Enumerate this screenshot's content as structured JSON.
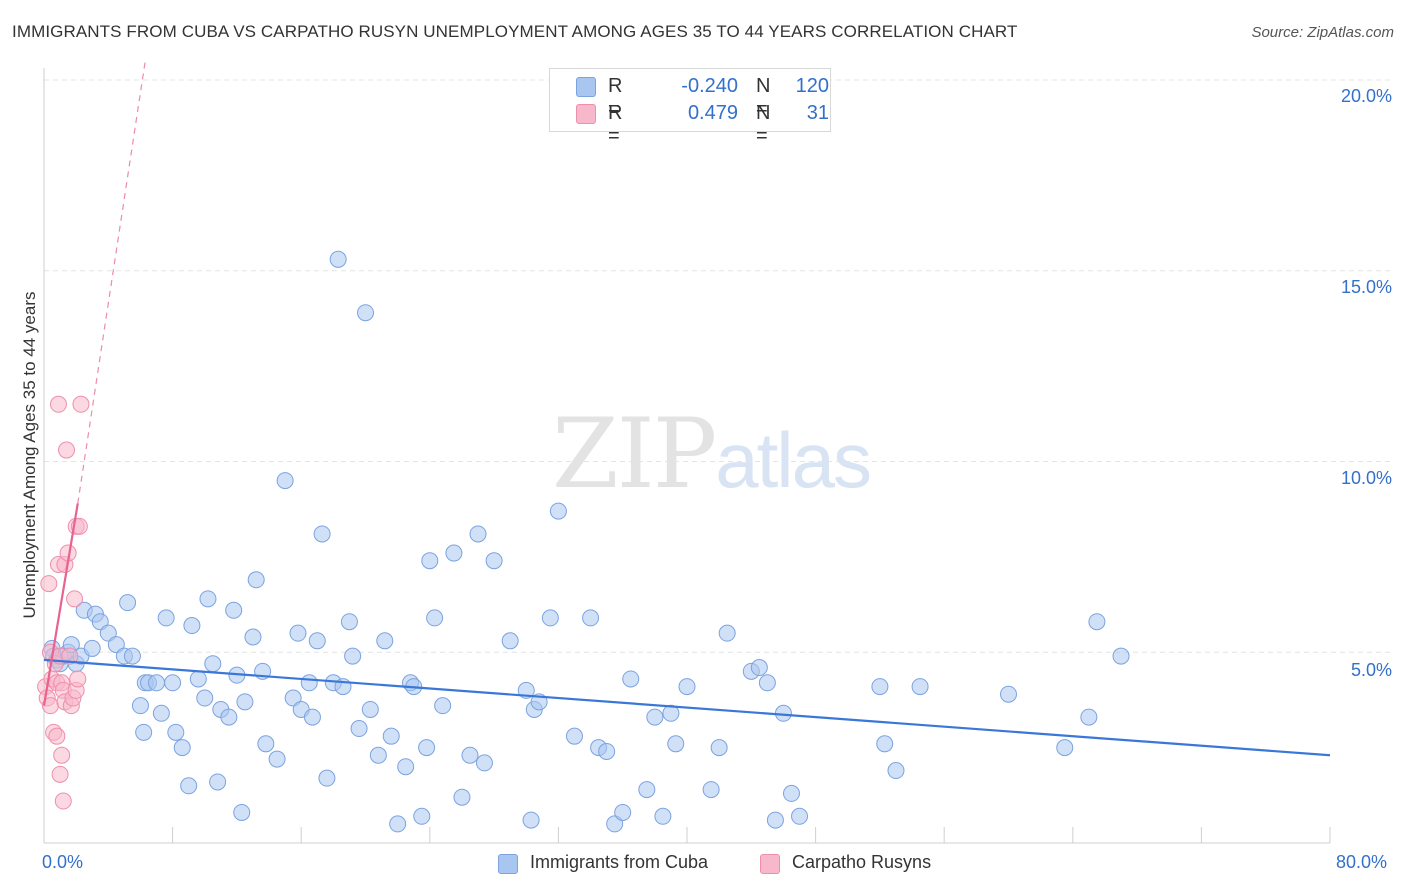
{
  "title": "IMMIGRANTS FROM CUBA VS CARPATHO RUSYN UNEMPLOYMENT AMONG AGES 35 TO 44 YEARS CORRELATION CHART",
  "source": "Source: ZipAtlas.com",
  "watermark": {
    "zip": "ZIP",
    "atlas": "atlas"
  },
  "legend": {
    "rows": [
      {
        "r_label": "R =",
        "r_value": "-0.240",
        "n_label": "N =",
        "n_value": "120",
        "color": "#a9c6f0",
        "border": "#7ba3e0"
      },
      {
        "r_label": "R =",
        "r_value": "0.479",
        "n_label": "N =",
        "n_value": "31",
        "color": "#f7b8cb",
        "border": "#ee8fac"
      }
    ]
  },
  "colors": {
    "blue": "#3a77d8",
    "pink": "#e8638f",
    "blue_fill": "#a9c6f0",
    "pink_fill": "#f7b8cb",
    "grid": "#e4e4e4",
    "tick_text": "#3370cc"
  },
  "chart_data": {
    "type": "scatter",
    "title": "IMMIGRANTS FROM CUBA VS CARPATHO RUSYN UNEMPLOYMENT AMONG AGES 35 TO 44 YEARS CORRELATION CHART",
    "xlabel": "",
    "ylabel": "Unemployment Among Ages 35 to 44 years",
    "xlim": [
      0,
      80
    ],
    "ylim": [
      0,
      20
    ],
    "x_tick_labels": [
      "0.0%",
      "80.0%"
    ],
    "y_ticks": [
      5,
      10,
      15,
      20
    ],
    "y_tick_labels": [
      "5.0%",
      "10.0%",
      "15.0%",
      "20.0%"
    ],
    "grid": true,
    "legend_position": "top-center",
    "series": [
      {
        "name": "Immigrants from Cuba",
        "color": "#3a77d8",
        "trend": {
          "x": [
            0,
            80
          ],
          "y": [
            4.8,
            2.3
          ]
        },
        "points": [
          [
            0.5,
            5.1
          ],
          [
            0.6,
            4.9
          ],
          [
            0.8,
            4.8
          ],
          [
            1.0,
            4.7
          ],
          [
            1.2,
            4.9
          ],
          [
            1.5,
            5.0
          ],
          [
            1.7,
            5.2
          ],
          [
            2.0,
            4.7
          ],
          [
            2.3,
            4.9
          ],
          [
            2.5,
            6.1
          ],
          [
            3.0,
            5.1
          ],
          [
            3.2,
            6.0
          ],
          [
            3.5,
            5.8
          ],
          [
            4.0,
            5.5
          ],
          [
            4.5,
            5.2
          ],
          [
            5.0,
            4.9
          ],
          [
            5.2,
            6.3
          ],
          [
            5.5,
            4.9
          ],
          [
            6.0,
            3.6
          ],
          [
            6.2,
            2.9
          ],
          [
            6.3,
            4.2
          ],
          [
            6.5,
            4.2
          ],
          [
            7.0,
            4.2
          ],
          [
            7.3,
            3.4
          ],
          [
            7.6,
            5.9
          ],
          [
            8.0,
            4.2
          ],
          [
            8.2,
            2.9
          ],
          [
            8.6,
            2.5
          ],
          [
            9.0,
            1.5
          ],
          [
            9.2,
            5.7
          ],
          [
            9.6,
            4.3
          ],
          [
            10.0,
            3.8
          ],
          [
            10.2,
            6.4
          ],
          [
            10.5,
            4.7
          ],
          [
            10.8,
            1.6
          ],
          [
            11.0,
            3.5
          ],
          [
            11.5,
            3.3
          ],
          [
            11.8,
            6.1
          ],
          [
            12.0,
            4.4
          ],
          [
            12.3,
            0.8
          ],
          [
            12.5,
            3.7
          ],
          [
            13.0,
            5.4
          ],
          [
            13.2,
            6.9
          ],
          [
            13.6,
            4.5
          ],
          [
            13.8,
            2.6
          ],
          [
            14.5,
            2.2
          ],
          [
            15.0,
            9.5
          ],
          [
            15.5,
            3.8
          ],
          [
            15.8,
            5.5
          ],
          [
            16.0,
            3.5
          ],
          [
            16.5,
            4.2
          ],
          [
            16.7,
            3.3
          ],
          [
            17.0,
            5.3
          ],
          [
            17.3,
            8.1
          ],
          [
            17.6,
            1.7
          ],
          [
            18.0,
            4.2
          ],
          [
            18.3,
            15.3
          ],
          [
            18.6,
            4.1
          ],
          [
            19.0,
            5.8
          ],
          [
            19.2,
            4.9
          ],
          [
            19.6,
            3.0
          ],
          [
            20.0,
            13.9
          ],
          [
            20.3,
            3.5
          ],
          [
            20.8,
            2.3
          ],
          [
            21.2,
            5.3
          ],
          [
            21.6,
            2.8
          ],
          [
            22.0,
            0.5
          ],
          [
            22.5,
            2.0
          ],
          [
            22.8,
            4.2
          ],
          [
            23.0,
            4.1
          ],
          [
            23.5,
            0.7
          ],
          [
            23.8,
            2.5
          ],
          [
            24.0,
            7.4
          ],
          [
            24.3,
            5.9
          ],
          [
            24.8,
            3.6
          ],
          [
            25.5,
            7.6
          ],
          [
            26.0,
            1.2
          ],
          [
            26.5,
            2.3
          ],
          [
            27.0,
            8.1
          ],
          [
            27.4,
            2.1
          ],
          [
            28.0,
            7.4
          ],
          [
            29.0,
            5.3
          ],
          [
            30.0,
            4.0
          ],
          [
            30.3,
            0.6
          ],
          [
            30.5,
            3.5
          ],
          [
            30.8,
            3.7
          ],
          [
            31.5,
            5.9
          ],
          [
            32.0,
            8.7
          ],
          [
            33.0,
            2.8
          ],
          [
            34.0,
            5.9
          ],
          [
            34.5,
            2.5
          ],
          [
            35.0,
            2.4
          ],
          [
            35.5,
            0.5
          ],
          [
            36.0,
            0.8
          ],
          [
            36.5,
            4.3
          ],
          [
            37.5,
            1.4
          ],
          [
            38.0,
            3.3
          ],
          [
            38.5,
            0.7
          ],
          [
            39.0,
            3.4
          ],
          [
            39.3,
            2.6
          ],
          [
            40.0,
            4.1
          ],
          [
            41.5,
            1.4
          ],
          [
            42.0,
            2.5
          ],
          [
            42.5,
            5.5
          ],
          [
            44.0,
            4.5
          ],
          [
            44.5,
            4.6
          ],
          [
            45.0,
            4.2
          ],
          [
            45.5,
            0.6
          ],
          [
            46.0,
            3.4
          ],
          [
            46.5,
            1.3
          ],
          [
            47.0,
            0.7
          ],
          [
            52.0,
            4.1
          ],
          [
            52.3,
            2.6
          ],
          [
            53.0,
            1.9
          ],
          [
            54.5,
            4.1
          ],
          [
            60.0,
            3.9
          ],
          [
            63.5,
            2.5
          ],
          [
            65.0,
            3.3
          ],
          [
            65.5,
            5.8
          ],
          [
            67.0,
            4.9
          ]
        ]
      },
      {
        "name": "Carpatho Rusyns",
        "color": "#e8638f",
        "trend": {
          "x": [
            0,
            2.1
          ],
          "y": [
            3.6,
            8.9
          ]
        },
        "trend_extension": {
          "x": [
            2.1,
            6.3
          ],
          "y": [
            8.9,
            20.5
          ]
        },
        "points": [
          [
            0.1,
            4.1
          ],
          [
            0.2,
            3.8
          ],
          [
            0.3,
            6.8
          ],
          [
            0.4,
            5.0
          ],
          [
            0.4,
            3.6
          ],
          [
            0.5,
            4.3
          ],
          [
            0.6,
            2.9
          ],
          [
            0.7,
            4.7
          ],
          [
            0.8,
            4.2
          ],
          [
            0.8,
            2.8
          ],
          [
            0.9,
            11.5
          ],
          [
            0.9,
            7.3
          ],
          [
            1.0,
            4.9
          ],
          [
            1.0,
            1.8
          ],
          [
            1.1,
            4.2
          ],
          [
            1.1,
            2.3
          ],
          [
            1.2,
            4.0
          ],
          [
            1.2,
            1.1
          ],
          [
            1.3,
            7.3
          ],
          [
            1.3,
            3.7
          ],
          [
            1.4,
            10.3
          ],
          [
            1.5,
            7.6
          ],
          [
            1.6,
            4.9
          ],
          [
            1.7,
            3.6
          ],
          [
            1.8,
            3.8
          ],
          [
            1.9,
            6.4
          ],
          [
            2.0,
            4.0
          ],
          [
            2.0,
            8.3
          ],
          [
            2.1,
            4.3
          ],
          [
            2.2,
            8.3
          ],
          [
            2.3,
            11.5
          ]
        ]
      }
    ]
  },
  "bottom_legend": [
    {
      "label": "Immigrants from Cuba",
      "color": "#a9c6f0",
      "border": "#7ba3e0"
    },
    {
      "label": "Carpatho Rusyns",
      "color": "#f7b8cb",
      "border": "#ee8fac"
    }
  ],
  "axis": {
    "x_min_label": "0.0%",
    "x_max_label": "80.0%",
    "y_labels": [
      "5.0%",
      "10.0%",
      "15.0%",
      "20.0%"
    ]
  }
}
